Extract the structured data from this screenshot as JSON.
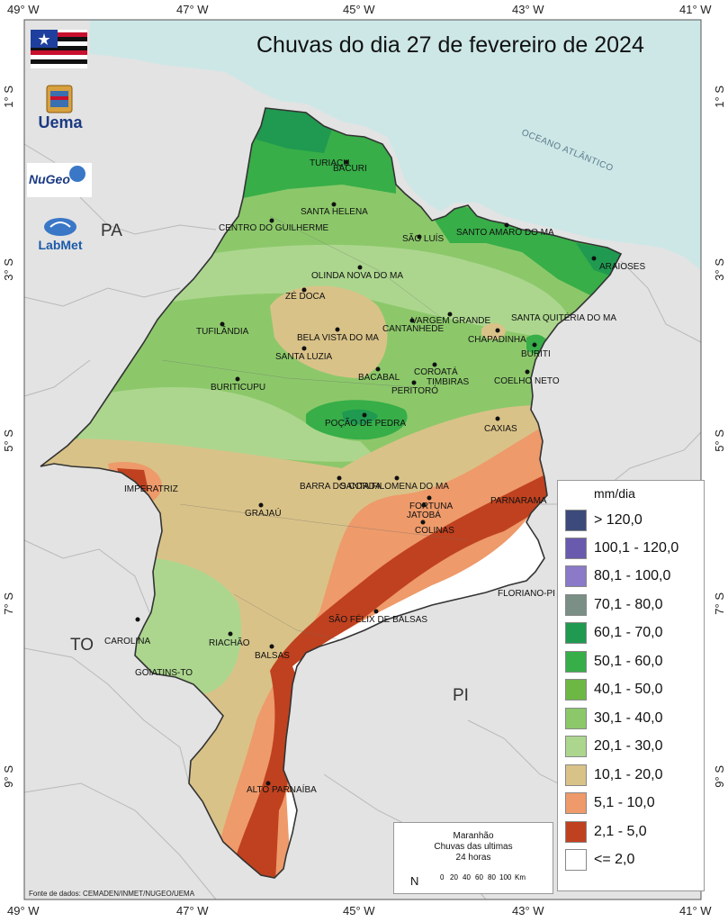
{
  "map": {
    "title": "Chuvas do dia 27 de fevereiro de 2024",
    "longitude_ticks": [
      "49° W",
      "47° W",
      "45° W",
      "43° W",
      "41° W"
    ],
    "latitude_ticks": [
      "1° S",
      "3° S",
      "5° S",
      "7° S",
      "9° S"
    ],
    "state_labels": [
      "PA",
      "TO",
      "PI"
    ],
    "ocean_label": "OCEANO ATLÂNTICO",
    "cities": [
      "TURIAÇU",
      "BACURI",
      "SANTA HELENA",
      "CENTRO DO GUILHERME",
      "SÃO LUÍS",
      "SANTO AMARO DO MA",
      "ARAIOSES",
      "OLINDA NOVA DO MA",
      "ZÉ DOCA",
      "VARGEM GRANDE",
      "CANTANHEDE",
      "SANTA QUITÉRIA DO MA",
      "TUFILÂNDIA",
      "BELA VISTA DO MA",
      "CHAPADINHA",
      "SANTA LUZIA",
      "BURITI",
      "COROATÁ",
      "BACABAL",
      "TIMBIRAS",
      "COELHO NETO",
      "BURITICUPU",
      "PERITORÓ",
      "POÇÃO DE PEDRA",
      "CAXIAS",
      "IMPERATRIZ",
      "BARRA DO CORDA",
      "SANTA FILOMENA DO MA",
      "FORTUNA",
      "JATOBÁ",
      "PARNARAMA",
      "GRAJAÚ",
      "COLINAS",
      "FLORIANO-PI",
      "SÃO FÉLIX DE BALSAS",
      "CAROLINA",
      "RIACHÃO",
      "BALSAS",
      "GOIATINS-TO",
      "ALTO PARNAÍBA"
    ],
    "logos": [
      "Uema",
      "NuGeo",
      "LabMet"
    ],
    "source": "Fonte de dados: CEMADEN/INMET/NUGEO/UEMA"
  },
  "legend": {
    "unit": "mm/dia",
    "classes": [
      {
        "label": "> 120,0",
        "color": "#3b4a7a"
      },
      {
        "label": "100,1 - 120,0",
        "color": "#6a5aad"
      },
      {
        "label": "80,1 - 100,0",
        "color": "#8a7ac8"
      },
      {
        "label": "70,1 - 80,0",
        "color": "#7a8f86"
      },
      {
        "label": "60,1 - 70,0",
        "color": "#1f9a50"
      },
      {
        "label": "50,1 - 60,0",
        "color": "#37ae48"
      },
      {
        "label": "40,1 - 50,0",
        "color": "#6db845"
      },
      {
        "label": "30,1 - 40,0",
        "color": "#8cc86a"
      },
      {
        "label": "20,1 - 30,0",
        "color": "#acd68e"
      },
      {
        "label": "10,1 - 20,0",
        "color": "#d9c288"
      },
      {
        "label": "5,1 - 10,0",
        "color": "#ee9a6a"
      },
      {
        "label": "2,1 - 5,0",
        "color": "#c0411f"
      },
      {
        "label": "<= 2,0",
        "color": "#ffffff"
      }
    ]
  },
  "info": {
    "line1": "Maranhão",
    "line2": "Chuvas das ultimas",
    "line3": "24 horas",
    "north": "N",
    "scale_ticks": [
      "0",
      "20",
      "40",
      "60",
      "80",
      "100"
    ],
    "scale_unit": "Km"
  }
}
